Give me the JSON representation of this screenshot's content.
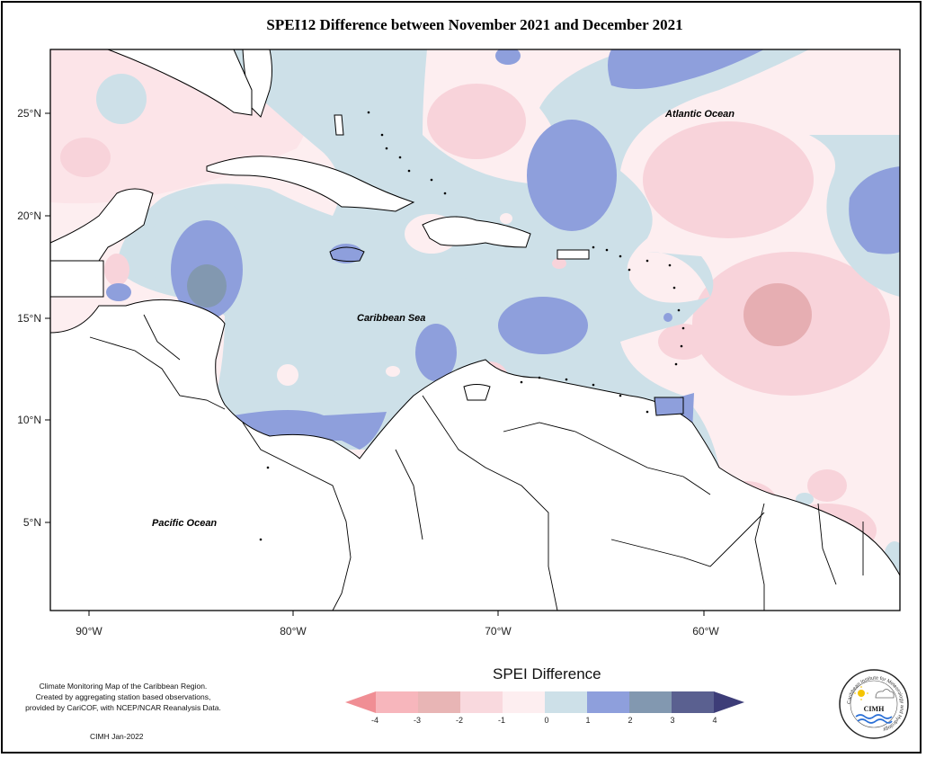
{
  "title": "SPEI12 Difference between November 2021 and December 2021",
  "map": {
    "lat_ticks": [
      "25°N",
      "20°N",
      "15°N",
      "10°N",
      "5°N"
    ],
    "lon_ticks": [
      "90°W",
      "80°W",
      "70°W",
      "60°W"
    ],
    "labels": {
      "atlantic": "Atlantic Ocean",
      "caribbean": "Caribbean Sea",
      "pacific": "Pacific Ocean"
    }
  },
  "legend": {
    "title": "SPEI Difference",
    "ticks": [
      "-4",
      "-3",
      "-2",
      "-1",
      "0",
      "1",
      "2",
      "3",
      "4"
    ],
    "colors": [
      "#f08e94",
      "#f7b6bc",
      "#e8b5b5",
      "#f9d9de",
      "#fdeef0",
      "#cde0e8",
      "#8e9fdc",
      "#8298b0",
      "#5a6090",
      "#3d3d78"
    ]
  },
  "footnote": {
    "line1": "Climate Monitoring Map of the Caribbean Region.",
    "line2": "Created by aggregating station based observations,",
    "line3": "provided by CariCOF, with NCEP/NCAR Reanalysis Data."
  },
  "credit": "CIMH Jan-2022",
  "logo": {
    "name": "CIMH",
    "ring_text": "Caribbean Institute for Meteorology and Hydrology"
  }
}
